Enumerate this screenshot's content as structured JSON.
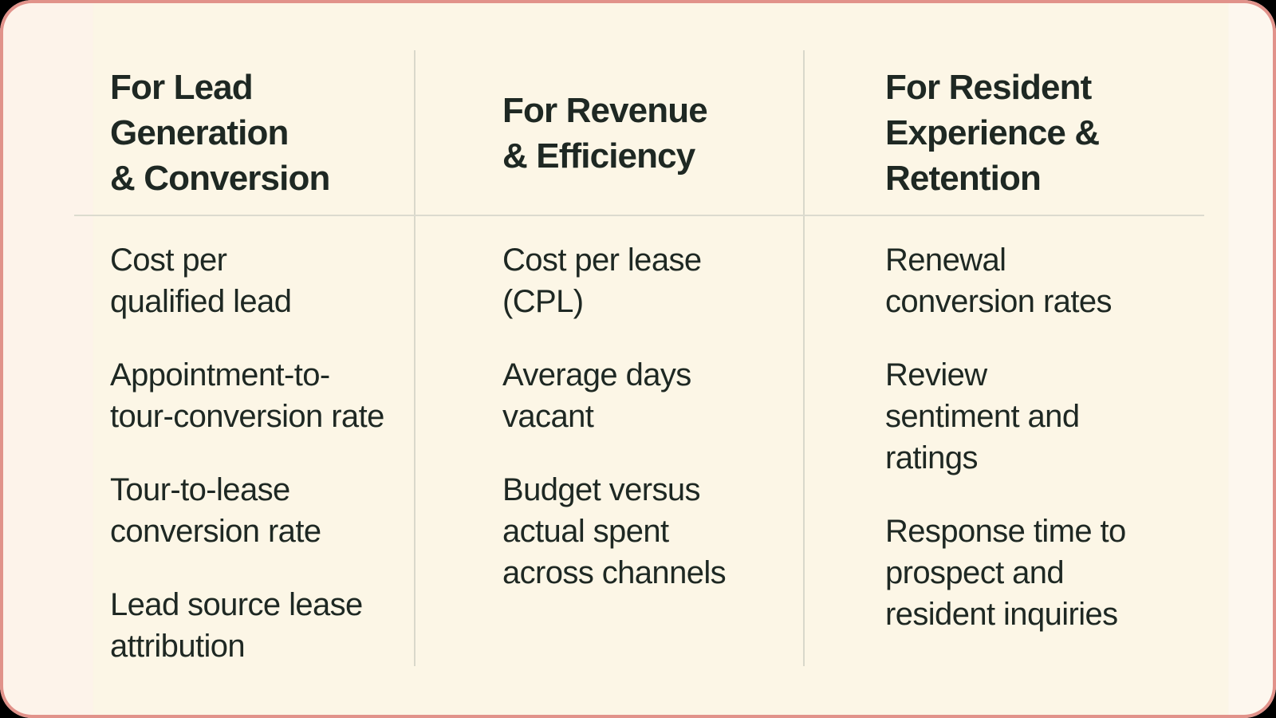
{
  "card": {
    "colors": {
      "background": "#fcf6e6",
      "border": "#e1928a",
      "text": "#1e2823",
      "divider": "#d9d8cb",
      "page_behind": "#000000"
    },
    "columns": [
      {
        "header": "For Lead\nGeneration\n& Conversion",
        "items": [
          "Cost per\nqualified lead",
          "Appointment-to-\ntour-conversion rate",
          "Tour-to-lease\nconversion rate",
          "Lead source lease\nattribution"
        ]
      },
      {
        "header": "For Revenue\n& Efficiency",
        "items": [
          "Cost per lease\n(CPL)",
          "Average days\nvacant",
          "Budget versus\nactual spent\nacross channels"
        ]
      },
      {
        "header": "For Resident\nExperience &\nRetention",
        "items": [
          "Renewal\nconversion rates",
          "Review\nsentiment and\nratings",
          "Response time to\nprospect and\nresident inquiries"
        ]
      }
    ]
  },
  "chart_data": {
    "type": "table",
    "title": "",
    "columns": [
      "For Lead Generation & Conversion",
      "For Revenue & Efficiency",
      "For Resident Experience & Retention"
    ],
    "cells": [
      [
        "Cost per qualified lead",
        "Appointment-to-tour-conversion rate",
        "Tour-to-lease conversion rate",
        "Lead source lease attribution"
      ],
      [
        "Cost per lease (CPL)",
        "Average days vacant",
        "Budget versus actual spent across channels"
      ],
      [
        "Renewal conversion rates",
        "Review sentiment and ratings",
        "Response time to prospect and resident inquiries"
      ]
    ],
    "layout_hints": {
      "legend": "none",
      "grid": "two vertical dividers between columns; horizontal rule under header row",
      "header_row_separated": true
    }
  }
}
